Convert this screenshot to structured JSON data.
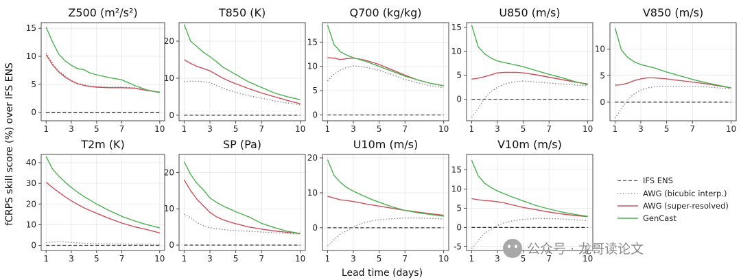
{
  "figure": {
    "ylabel": "fCRPS skill score (%) over IFS ENS",
    "xlabel": "Lead time (days)",
    "watermark": "公众号 · 龙哥读论文"
  },
  "legend": [
    {
      "label": "IFS ENS",
      "style": "dashed",
      "color": "#333333"
    },
    {
      "label": "AWG (bicubic interp.)",
      "style": "dotted",
      "color": "#8a8a8a"
    },
    {
      "label": "AWG (super-resolved)",
      "style": "solid",
      "color": "#c9505a"
    },
    {
      "label": "GenCast",
      "style": "solid",
      "color": "#4caf50"
    }
  ],
  "chart_data": [
    {
      "type": "line",
      "title": "Z500 (m²/s²)",
      "xlabel": "Lead time (days)",
      "ylabel": "fCRPS skill score (%) over IFS ENS",
      "x": [
        1,
        1.5,
        2,
        2.5,
        3,
        3.5,
        4,
        4.5,
        5,
        6,
        7,
        8,
        9,
        10
      ],
      "xticks": [
        1,
        3,
        5,
        7,
        10
      ],
      "ylim": [
        -1.5,
        16
      ],
      "yticks": [
        0,
        5,
        10,
        15
      ],
      "series": [
        {
          "name": "IFS ENS",
          "values": [
            0,
            0,
            0,
            0,
            0,
            0,
            0,
            0,
            0,
            0,
            0,
            0,
            0,
            0
          ]
        },
        {
          "name": "AWG (bicubic interp.)",
          "values": [
            10.6,
            8.8,
            7.4,
            6.5,
            5.7,
            5.2,
            4.9,
            4.7,
            4.6,
            4.5,
            4.5,
            4.4,
            4.0,
            3.6
          ]
        },
        {
          "name": "AWG (super-resolved)",
          "values": [
            10.3,
            8.5,
            7.2,
            6.3,
            5.6,
            5.1,
            4.8,
            4.6,
            4.5,
            4.4,
            4.4,
            4.3,
            3.9,
            3.6
          ]
        },
        {
          "name": "GenCast",
          "values": [
            15.2,
            12.6,
            10.4,
            9.2,
            8.4,
            7.8,
            7.6,
            7.0,
            6.7,
            6.2,
            5.8,
            4.8,
            4.0,
            3.5
          ]
        }
      ]
    },
    {
      "type": "line",
      "title": "T850 (K)",
      "xlabel": "Lead time (days)",
      "ylabel": "fCRPS skill score (%) over IFS ENS",
      "x": [
        1,
        1.5,
        2,
        2.5,
        3,
        3.5,
        4,
        4.5,
        5,
        6,
        7,
        8,
        9,
        10
      ],
      "xticks": [
        1,
        3,
        5,
        7,
        10
      ],
      "ylim": [
        -1.5,
        25
      ],
      "yticks": [
        0,
        10,
        20
      ],
      "series": [
        {
          "name": "IFS ENS",
          "values": [
            0,
            0,
            0,
            0,
            0,
            0,
            0,
            0,
            0,
            0,
            0,
            0,
            0,
            0
          ]
        },
        {
          "name": "AWG (bicubic interp.)",
          "values": [
            9.0,
            9.2,
            9.2,
            9.0,
            8.8,
            8.0,
            7.3,
            6.7,
            6.2,
            5.3,
            4.6,
            3.9,
            3.3,
            2.8
          ]
        },
        {
          "name": "AWG (super-resolved)",
          "values": [
            15.0,
            14.0,
            13.2,
            12.6,
            12.0,
            11.0,
            10.0,
            9.2,
            8.5,
            7.2,
            6.0,
            5.0,
            4.0,
            3.1
          ]
        },
        {
          "name": "GenCast",
          "values": [
            24.5,
            20.0,
            18.5,
            17.0,
            15.8,
            14.5,
            13.0,
            12.0,
            11.0,
            9.0,
            7.5,
            6.0,
            5.0,
            4.2
          ]
        }
      ]
    },
    {
      "type": "line",
      "title": "Q700 (kg/kg)",
      "xlabel": "Lead time (days)",
      "ylabel": "fCRPS skill score (%) over IFS ENS",
      "x": [
        1,
        1.5,
        2,
        2.5,
        3,
        3.5,
        4,
        4.5,
        5,
        6,
        7,
        8,
        9,
        10
      ],
      "xticks": [
        1,
        3,
        5,
        7,
        10
      ],
      "ylim": [
        -1.2,
        19
      ],
      "yticks": [
        0,
        5,
        10,
        15
      ],
      "series": [
        {
          "name": "IFS ENS",
          "values": [
            0,
            0,
            0,
            0,
            0,
            0,
            0,
            0,
            0,
            0,
            0,
            0,
            0,
            0
          ]
        },
        {
          "name": "AWG (bicubic interp.)",
          "values": [
            7.0,
            8.4,
            9.2,
            9.8,
            10.1,
            10.0,
            9.8,
            9.5,
            9.2,
            8.3,
            7.3,
            6.6,
            6.0,
            5.6
          ]
        },
        {
          "name": "AWG (super-resolved)",
          "values": [
            11.8,
            11.7,
            11.4,
            11.6,
            11.7,
            11.5,
            11.2,
            10.8,
            10.4,
            9.3,
            8.2,
            7.2,
            6.5,
            6.0
          ]
        },
        {
          "name": "GenCast",
          "values": [
            18.5,
            14.5,
            13.0,
            12.3,
            11.8,
            11.4,
            11.0,
            10.5,
            10.0,
            9.0,
            8.0,
            7.2,
            6.5,
            6.0
          ]
        }
      ]
    },
    {
      "type": "line",
      "title": "U850 (m/s)",
      "xlabel": "Lead time (days)",
      "ylabel": "fCRPS skill score (%) over IFS ENS",
      "x": [
        1,
        1.5,
        2,
        2.5,
        3,
        3.5,
        4,
        4.5,
        5,
        6,
        7,
        8,
        9,
        10
      ],
      "xticks": [
        1,
        3,
        5,
        7,
        10
      ],
      "ylim": [
        -4.5,
        16
      ],
      "yticks": [
        0,
        5,
        10,
        15
      ],
      "series": [
        {
          "name": "IFS ENS",
          "values": [
            0,
            0,
            0,
            0,
            0,
            0,
            0,
            0,
            0,
            0,
            0,
            0,
            0,
            0
          ]
        },
        {
          "name": "AWG (bicubic interp.)",
          "values": [
            -3.8,
            -2.0,
            0.2,
            1.6,
            2.5,
            3.1,
            3.5,
            3.7,
            3.8,
            3.6,
            3.4,
            3.2,
            3.0,
            2.8
          ]
        },
        {
          "name": "AWG (super-resolved)",
          "values": [
            4.2,
            4.4,
            4.7,
            5.1,
            5.5,
            5.6,
            5.6,
            5.6,
            5.5,
            5.1,
            4.6,
            4.1,
            3.6,
            3.2
          ]
        },
        {
          "name": "GenCast",
          "values": [
            15.5,
            11.0,
            9.5,
            8.6,
            8.0,
            7.7,
            7.4,
            7.1,
            6.8,
            6.0,
            5.2,
            4.5,
            3.7,
            3.0
          ]
        }
      ]
    },
    {
      "type": "line",
      "title": "V850 (m/s)",
      "xlabel": "Lead time (days)",
      "ylabel": "fCRPS skill score (%) over IFS ENS",
      "x": [
        1,
        1.5,
        2,
        2.5,
        3,
        3.5,
        4,
        4.5,
        5,
        6,
        7,
        8,
        9,
        10
      ],
      "xticks": [
        1,
        3,
        5,
        7,
        10
      ],
      "ylim": [
        -3.5,
        15
      ],
      "yticks": [
        0,
        5,
        10
      ],
      "series": [
        {
          "name": "IFS ENS",
          "values": [
            0,
            0,
            0,
            0,
            0,
            0,
            0,
            0,
            0,
            0,
            0,
            0,
            0,
            0
          ]
        },
        {
          "name": "AWG (bicubic interp.)",
          "values": [
            -3.0,
            -1.2,
            0.5,
            1.6,
            2.3,
            2.7,
            2.9,
            3.0,
            3.0,
            3.0,
            3.0,
            2.9,
            2.7,
            2.5
          ]
        },
        {
          "name": "AWG (super-resolved)",
          "values": [
            3.2,
            3.3,
            3.6,
            4.1,
            4.4,
            4.6,
            4.6,
            4.5,
            4.4,
            4.1,
            3.8,
            3.5,
            3.1,
            2.7
          ]
        },
        {
          "name": "GenCast",
          "values": [
            14.0,
            9.8,
            8.4,
            7.6,
            7.1,
            6.8,
            6.5,
            6.1,
            5.7,
            5.0,
            4.3,
            3.7,
            3.2,
            2.7
          ]
        }
      ]
    },
    {
      "type": "line",
      "title": "T2m (K)",
      "xlabel": "Lead time (days)",
      "ylabel": "fCRPS skill score (%) over IFS ENS",
      "x": [
        1,
        1.5,
        2,
        2.5,
        3,
        3.5,
        4,
        4.5,
        5,
        6,
        7,
        8,
        9,
        10
      ],
      "xticks": [
        1,
        3,
        5,
        7,
        10
      ],
      "ylim": [
        -2.5,
        44
      ],
      "yticks": [
        0,
        10,
        20,
        30,
        40
      ],
      "series": [
        {
          "name": "IFS ENS",
          "values": [
            0,
            0,
            0,
            0,
            0,
            0,
            0,
            0,
            0,
            0,
            0,
            0,
            0,
            0
          ]
        },
        {
          "name": "AWG (bicubic interp.)",
          "values": [
            1.3,
            1.6,
            1.8,
            1.6,
            1.4,
            1.2,
            1.0,
            0.9,
            0.8,
            0.7,
            0.6,
            0.5,
            0.5,
            0.4
          ]
        },
        {
          "name": "AWG (super-resolved)",
          "values": [
            30.5,
            28.0,
            25.7,
            23.5,
            21.5,
            19.8,
            18.2,
            16.8,
            15.5,
            13.0,
            10.8,
            9.0,
            7.6,
            6.0
          ]
        },
        {
          "name": "GenCast",
          "values": [
            43.0,
            37.0,
            33.5,
            30.6,
            28.0,
            25.7,
            23.6,
            21.8,
            20.0,
            16.8,
            14.0,
            11.8,
            10.0,
            8.5
          ]
        }
      ]
    },
    {
      "type": "line",
      "title": "SP (Pa)",
      "xlabel": "Lead time (days)",
      "ylabel": "fCRPS skill score (%) over IFS ENS",
      "x": [
        1,
        1.5,
        2,
        2.5,
        3,
        3.5,
        4,
        4.5,
        5,
        6,
        7,
        8,
        9,
        10
      ],
      "xticks": [
        1,
        3,
        5,
        7,
        10
      ],
      "ylim": [
        -1.5,
        25
      ],
      "yticks": [
        0,
        10,
        20
      ],
      "series": [
        {
          "name": "IFS ENS",
          "values": [
            0,
            0,
            0,
            0,
            0,
            0,
            0,
            0,
            0,
            0,
            0,
            0,
            0,
            0
          ]
        },
        {
          "name": "AWG (bicubic interp.)",
          "values": [
            8.5,
            7.6,
            6.2,
            5.3,
            4.8,
            4.5,
            4.3,
            4.1,
            4.0,
            3.8,
            3.6,
            3.4,
            3.2,
            3.0
          ]
        },
        {
          "name": "AWG (super-resolved)",
          "values": [
            18.0,
            15.0,
            12.6,
            10.8,
            9.0,
            7.8,
            7.0,
            6.4,
            5.9,
            5.0,
            4.4,
            3.9,
            3.5,
            3.2
          ]
        },
        {
          "name": "GenCast",
          "values": [
            23.0,
            19.5,
            17.0,
            15.2,
            13.0,
            11.8,
            10.8,
            10.0,
            9.2,
            7.8,
            6.0,
            4.8,
            3.8,
            3.2
          ]
        }
      ]
    },
    {
      "type": "line",
      "title": "U10m (m/s)",
      "xlabel": "Lead time (days)",
      "ylabel": "fCRPS skill score (%) over IFS ENS",
      "x": [
        1,
        1.5,
        2,
        2.5,
        3,
        3.5,
        4,
        4.5,
        5,
        6,
        7,
        8,
        9,
        10
      ],
      "xticks": [
        1,
        3,
        5,
        7,
        10
      ],
      "ylim": [
        -6.5,
        21
      ],
      "yticks": [
        0,
        10,
        20
      ],
      "series": [
        {
          "name": "IFS ENS",
          "values": [
            0,
            0,
            0,
            0,
            0,
            0,
            0,
            0,
            0,
            0,
            0,
            0,
            0,
            0
          ]
        },
        {
          "name": "AWG (bicubic interp.)",
          "values": [
            -5.2,
            -3.5,
            -1.8,
            -0.8,
            0.3,
            1.0,
            1.6,
            2.0,
            2.3,
            2.6,
            2.8,
            2.8,
            2.7,
            2.5
          ]
        },
        {
          "name": "AWG (super-resolved)",
          "values": [
            9.0,
            8.5,
            8.0,
            7.8,
            7.5,
            7.2,
            6.8,
            6.5,
            6.2,
            5.6,
            5.0,
            4.5,
            4.0,
            3.6
          ]
        },
        {
          "name": "GenCast",
          "values": [
            19.5,
            15.0,
            13.0,
            11.5,
            10.5,
            9.6,
            8.8,
            8.0,
            7.3,
            6.0,
            5.0,
            4.3,
            3.8,
            3.3
          ]
        }
      ]
    },
    {
      "type": "line",
      "title": "V10m (m/s)",
      "xlabel": "Lead time (days)",
      "ylabel": "fCRPS skill score (%) over IFS ENS",
      "x": [
        1,
        1.5,
        2,
        2.5,
        3,
        3.5,
        4,
        4.5,
        5,
        6,
        7,
        8,
        9,
        10
      ],
      "xticks": [
        1,
        3,
        5,
        7,
        10
      ],
      "ylim": [
        -6,
        19
      ],
      "yticks": [
        -5,
        0,
        5,
        10,
        15
      ],
      "series": [
        {
          "name": "IFS ENS",
          "values": [
            0,
            0,
            0,
            0,
            0,
            0,
            0,
            0,
            0,
            0,
            0,
            0,
            0,
            0
          ]
        },
        {
          "name": "AWG (bicubic interp.)",
          "values": [
            -5.5,
            -3.5,
            -1.5,
            -0.5,
            0.5,
            1.2,
            1.6,
            1.9,
            2.1,
            2.3,
            2.3,
            2.2,
            2.0,
            1.8
          ]
        },
        {
          "name": "AWG (super-resolved)",
          "values": [
            7.5,
            7.2,
            7.0,
            6.9,
            6.7,
            6.4,
            6.0,
            5.6,
            5.2,
            4.6,
            4.0,
            3.5,
            3.1,
            2.8
          ]
        },
        {
          "name": "GenCast",
          "values": [
            17.5,
            13.5,
            11.5,
            10.4,
            9.5,
            8.8,
            8.1,
            7.5,
            6.9,
            5.7,
            4.8,
            4.0,
            3.4,
            2.9
          ]
        }
      ]
    }
  ]
}
